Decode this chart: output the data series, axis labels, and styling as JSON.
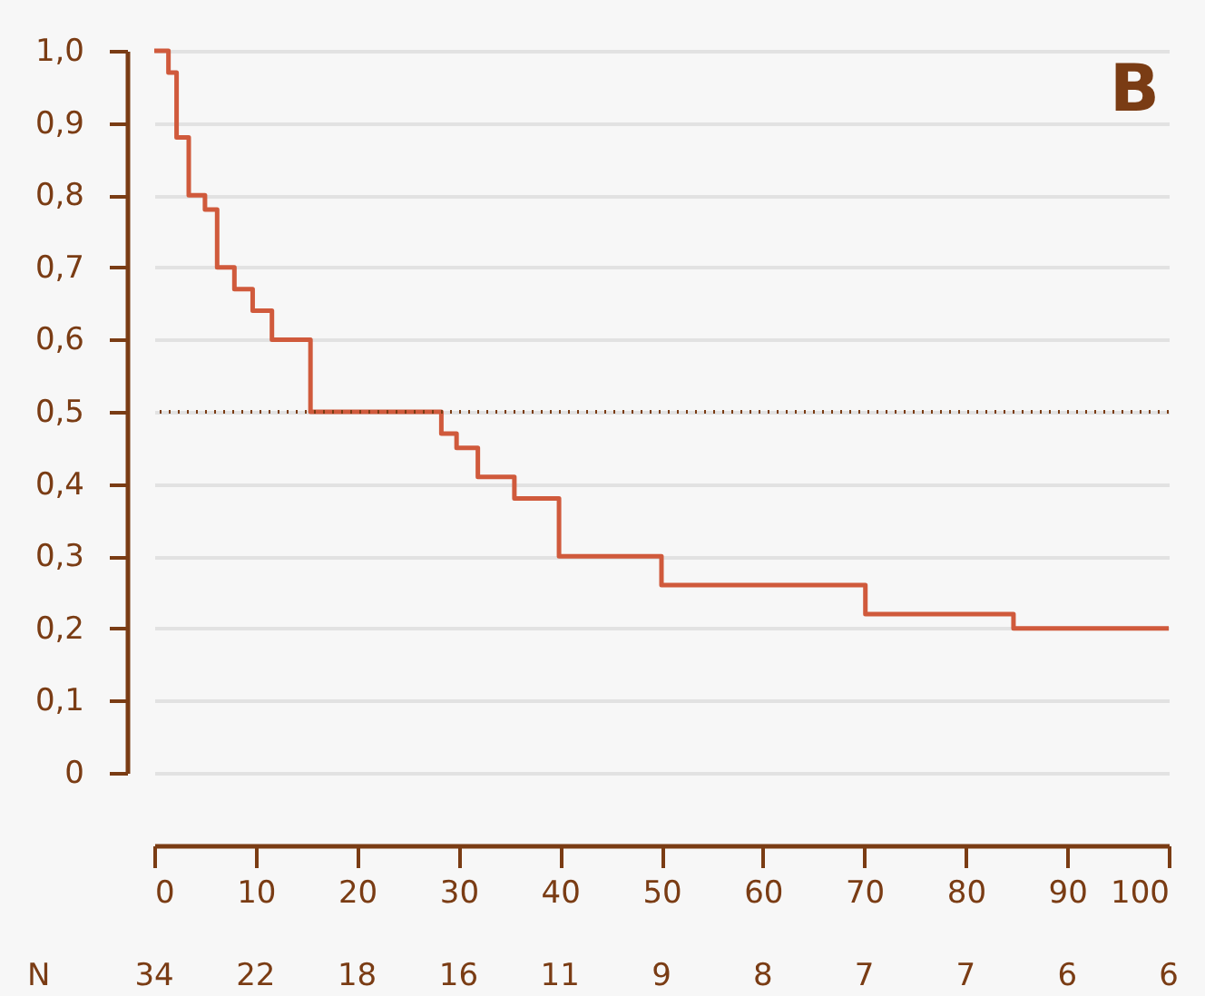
{
  "chart_data": {
    "type": "step",
    "x": [
      0,
      1.4,
      2.2,
      3.4,
      5,
      6.2,
      7.9,
      9.7,
      11.6,
      15.4,
      28.3,
      29.8,
      31.9,
      35.5,
      39.9,
      50,
      70.1,
      84.7,
      100
    ],
    "series": [
      {
        "color": "#d05a3c",
        "values": [
          1.0,
          0.97,
          0.88,
          0.8,
          0.78,
          0.7,
          0.67,
          0.64,
          0.6,
          0.5,
          0.47,
          0.45,
          0.41,
          0.38,
          0.3,
          0.26,
          0.22,
          0.2,
          0.2
        ]
      }
    ],
    "xlim": [
      0,
      100
    ],
    "xticks": [
      0,
      10,
      20,
      30,
      40,
      50,
      60,
      70,
      80,
      90,
      100
    ],
    "ylim": [
      0,
      1
    ],
    "yticks": [
      {
        "value": 0,
        "label": "0"
      },
      {
        "value": 0.1,
        "label": "0,1"
      },
      {
        "value": 0.2,
        "label": "0,2"
      },
      {
        "value": 0.3,
        "label": "0,3"
      },
      {
        "value": 0.4,
        "label": "0,4"
      },
      {
        "value": 0.5,
        "label": "0,5"
      },
      {
        "value": 0.6,
        "label": "0,6"
      },
      {
        "value": 0.7,
        "label": "0,7"
      },
      {
        "value": 0.8,
        "label": "0,8"
      },
      {
        "value": 0.9,
        "label": "0,9"
      },
      {
        "value": 1,
        "label": "1,0"
      }
    ],
    "ref_lines": [
      {
        "axis": "y",
        "value": 0.5,
        "color": "#7a3c14",
        "line_style": "dotted"
      }
    ],
    "grid": "y",
    "marker": "none",
    "line_style": "solid",
    "annotations": [
      "B",
      "N",
      "34",
      "22",
      "18",
      "16",
      "11",
      "9",
      "8",
      "7",
      "7",
      "6",
      "6"
    ]
  }
}
